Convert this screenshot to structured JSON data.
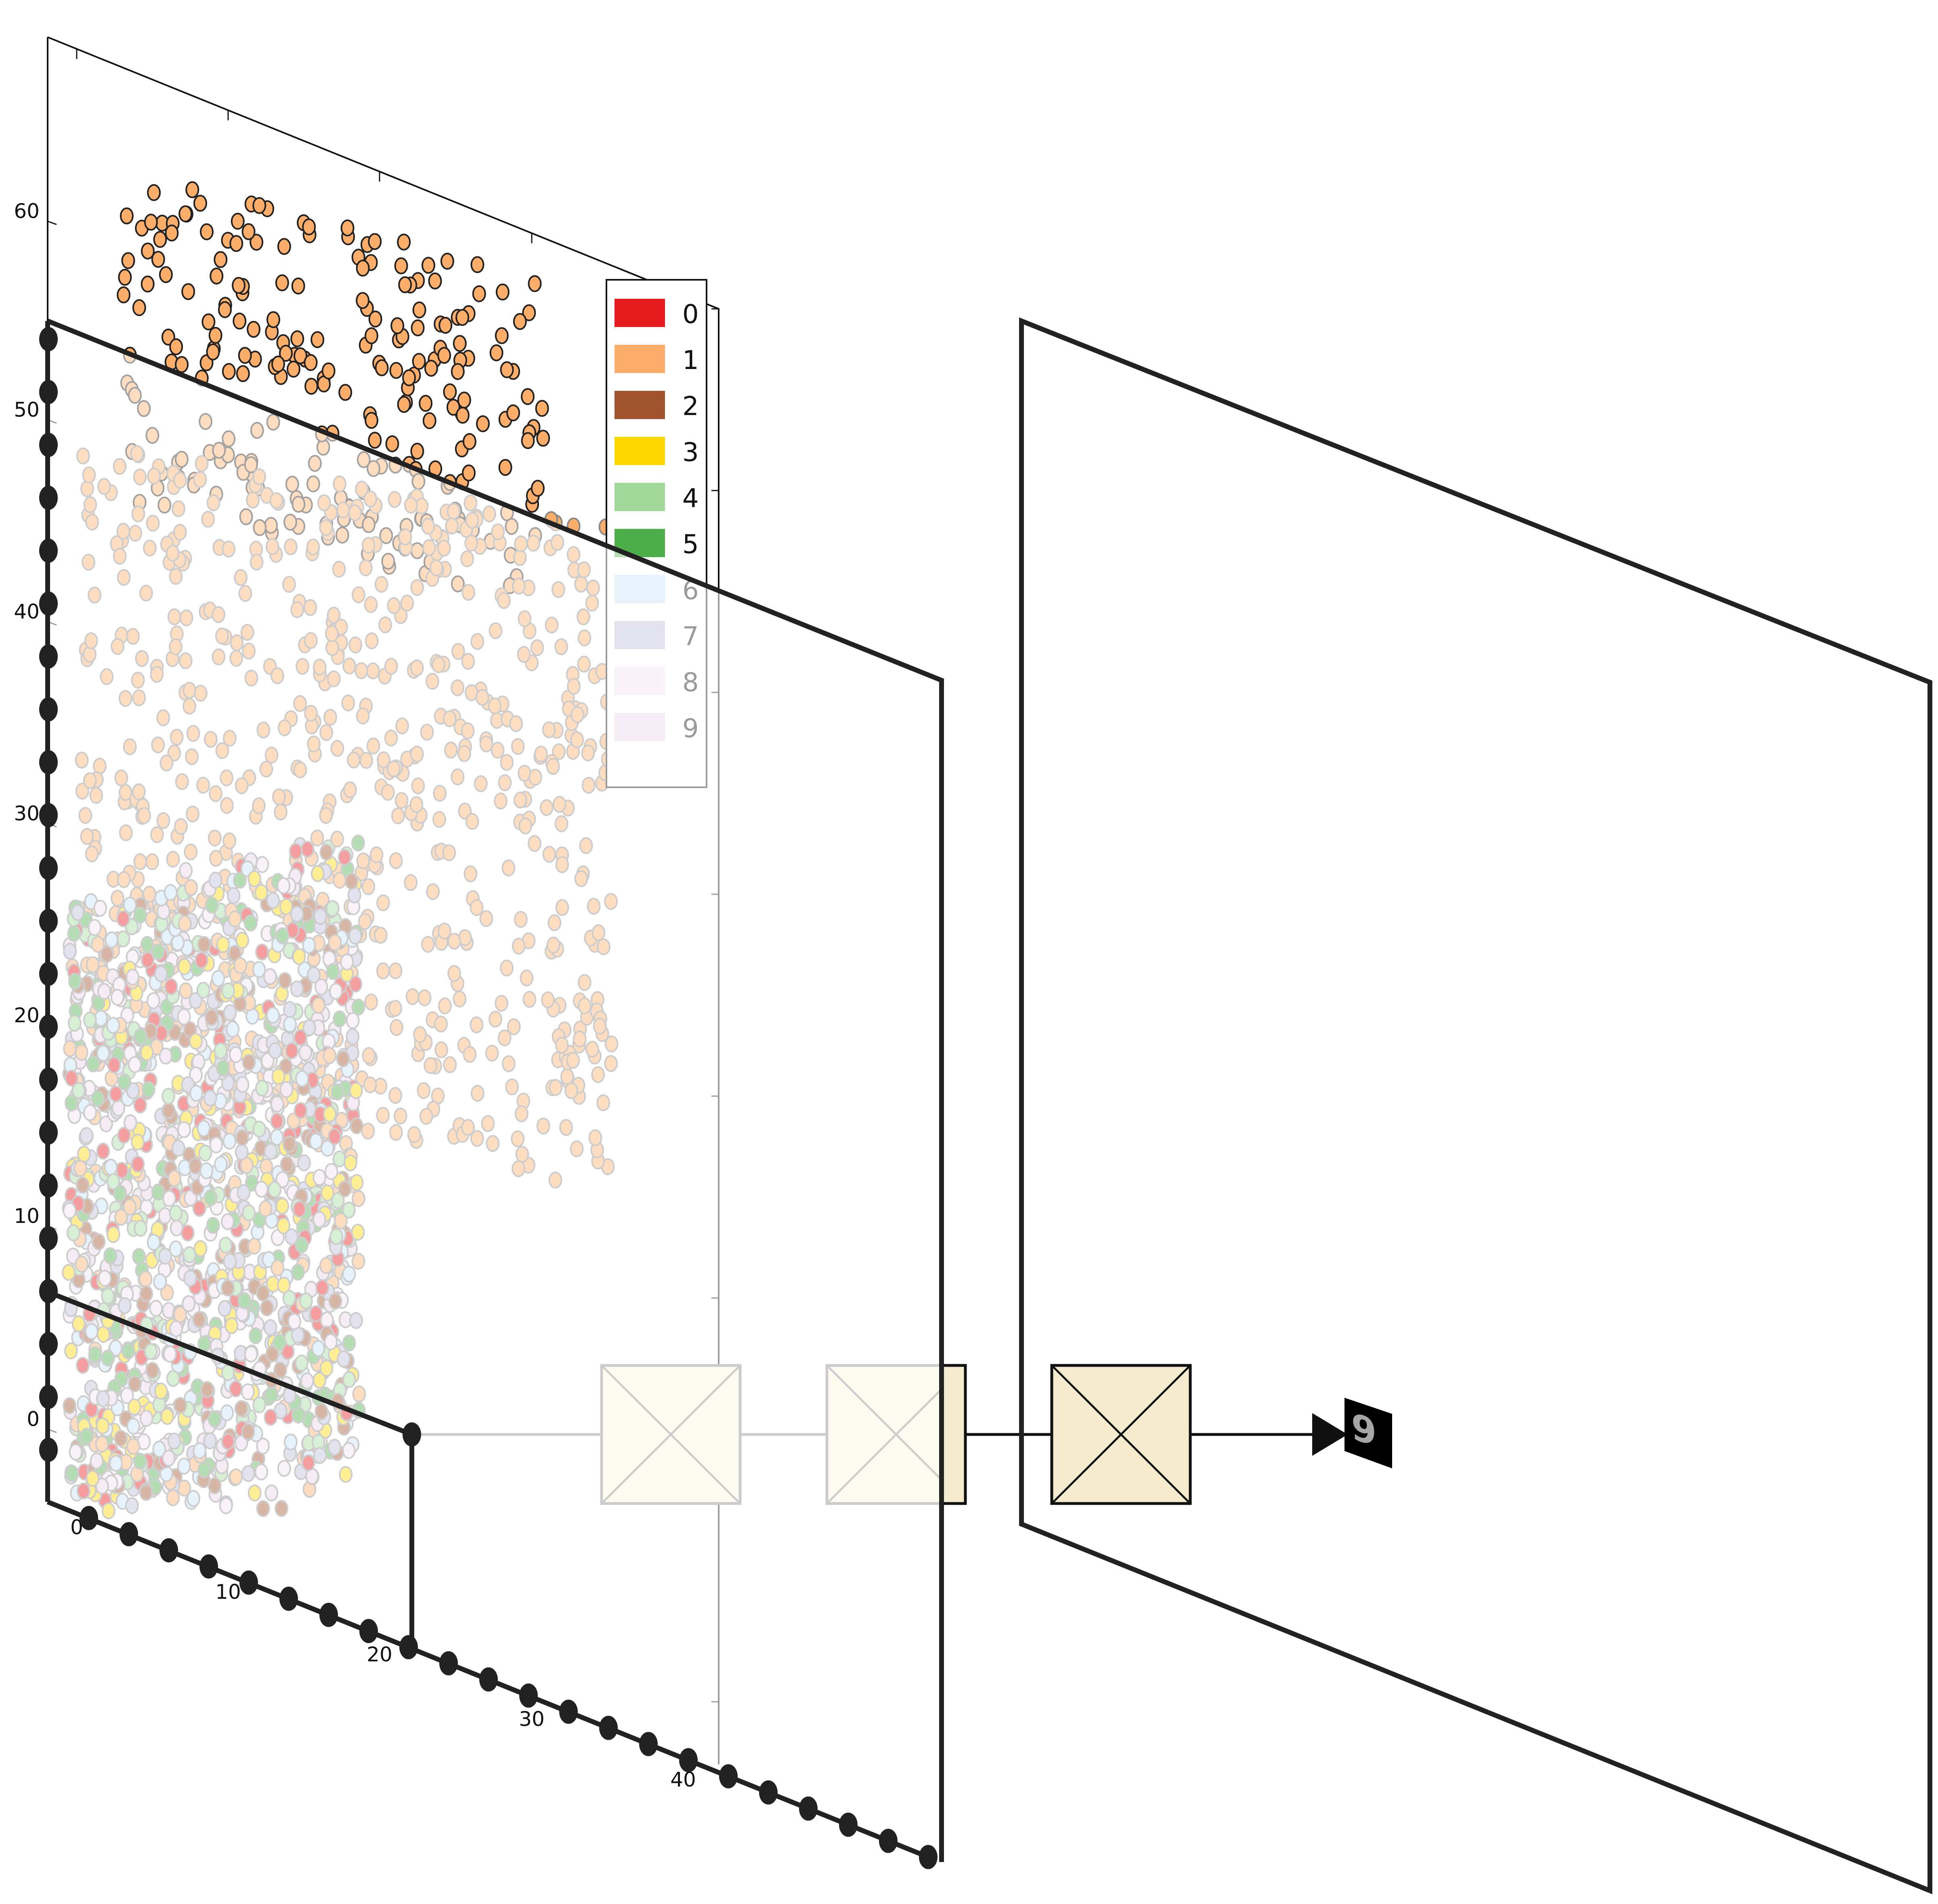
{
  "diagram": {
    "left_axis": {
      "ticks": [
        "60",
        "50",
        "40",
        "30",
        "20",
        "10",
        "0"
      ]
    },
    "bottom_axis": {
      "ticks": [
        "0",
        "10",
        "20",
        "30",
        "40"
      ]
    },
    "legend": {
      "items": [
        {
          "label": "0",
          "color": "#e41a1c"
        },
        {
          "label": "1",
          "color": "#fdae6b"
        },
        {
          "label": "2",
          "color": "#a0522d"
        },
        {
          "label": "3",
          "color": "#ffd700"
        },
        {
          "label": "4",
          "color": "#a1d99b"
        },
        {
          "label": "5",
          "color": "#4daf4a"
        },
        {
          "label": "6",
          "color": "#c6e2f7"
        },
        {
          "label": "7",
          "color": "#bcbddc"
        },
        {
          "label": "8",
          "color": "#f2dff0"
        },
        {
          "label": "9",
          "color": "#e7cfe8"
        }
      ]
    },
    "highlighted_class": "1",
    "block_fill": "#f5ebcf",
    "output_digit": "9"
  }
}
